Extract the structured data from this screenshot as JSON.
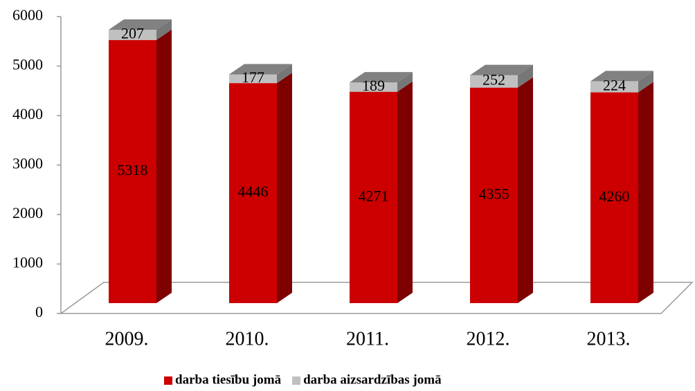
{
  "chart_data": {
    "type": "bar3d_stacked",
    "categories": [
      "2009.",
      "2010.",
      "2011.",
      "2012.",
      "2013."
    ],
    "series": [
      {
        "name": "darba tiesību jomā",
        "color": "#cc0000",
        "values": [
          5318,
          4446,
          4271,
          4355,
          4260
        ]
      },
      {
        "name": "darba aizsardzības jomā",
        "color": "#c0c0c0",
        "values": [
          207,
          177,
          189,
          252,
          224
        ]
      }
    ],
    "ylim": [
      0,
      6000
    ],
    "yticks": [
      0,
      1000,
      2000,
      3000,
      4000,
      5000,
      6000
    ],
    "legend": "bottom"
  }
}
